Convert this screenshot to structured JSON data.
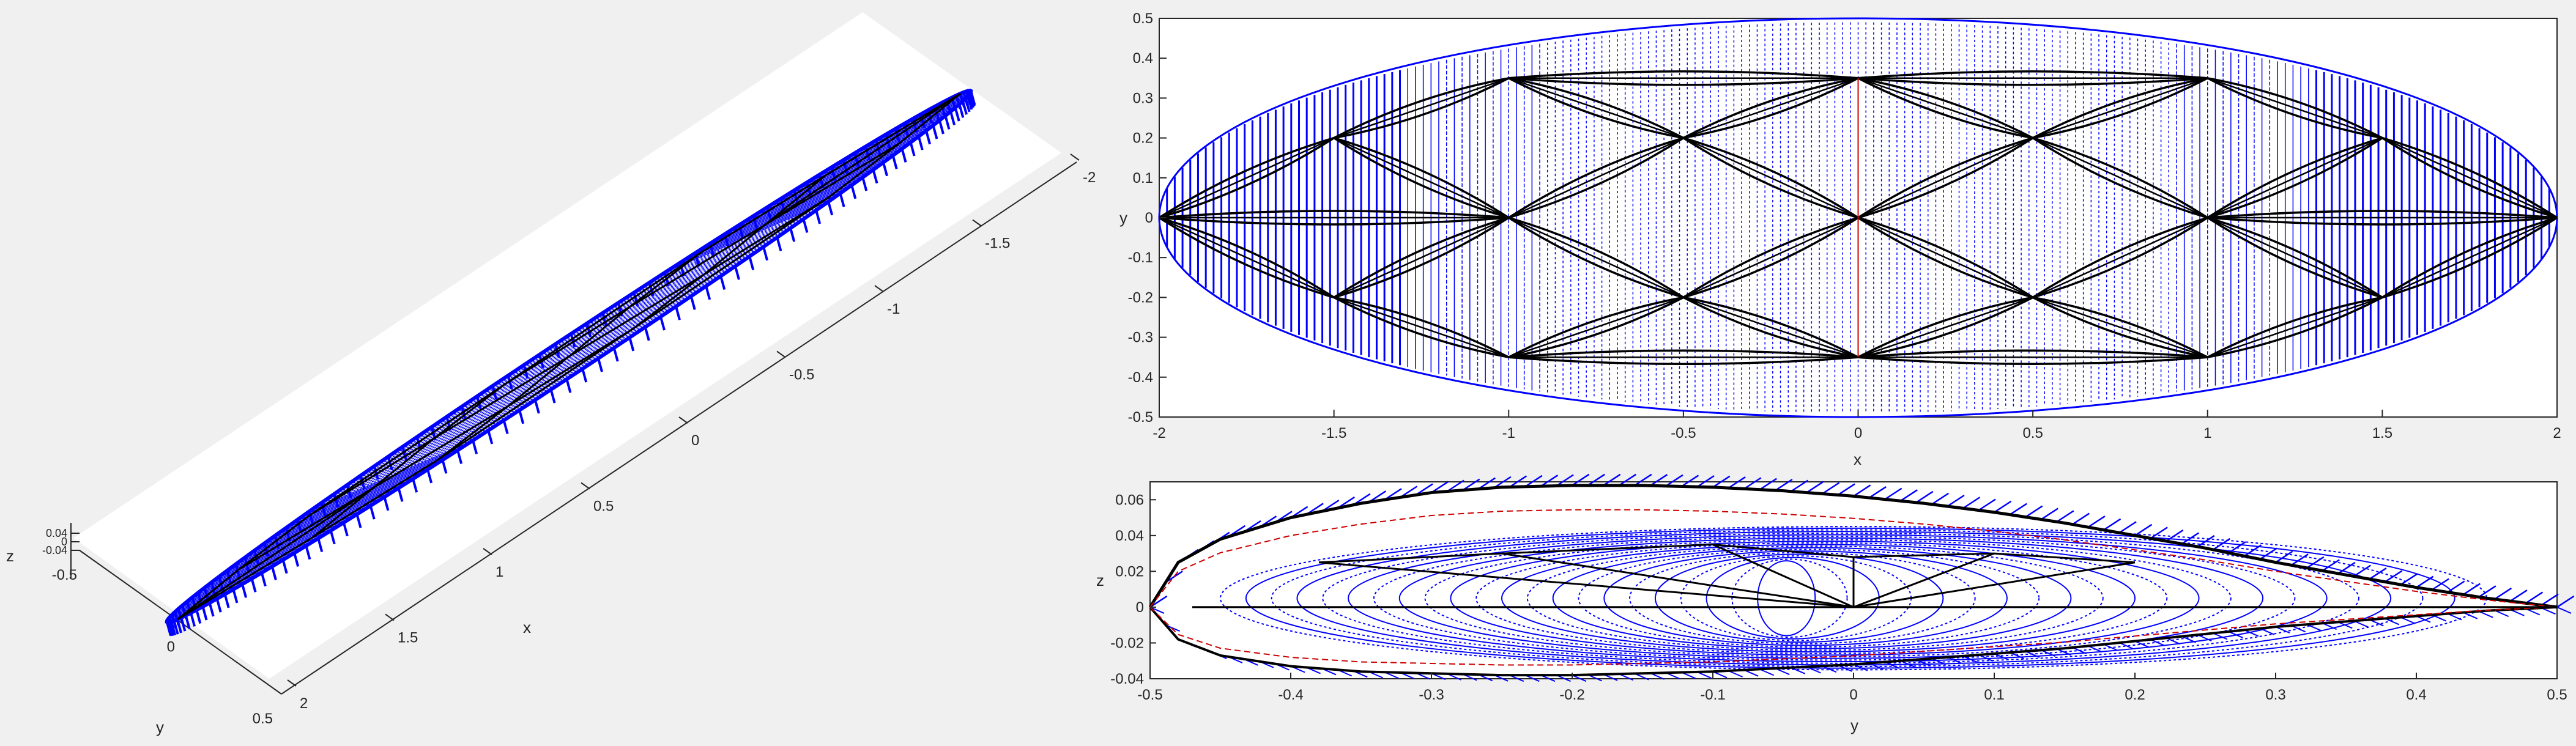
{
  "figure": {
    "background": "#f0f0f0",
    "axes_background": "#ffffff",
    "axis_color": "#262626",
    "colors": {
      "surface": "#0000ff",
      "truss": "#000000",
      "dashed": "#cc0000"
    }
  },
  "chart_data": [
    {
      "id": "view-3d",
      "type": "scatter",
      "view": "3d-oblique",
      "title": "",
      "xlabel": "x",
      "ylabel": "y",
      "zlabel": "z",
      "x_ticks": [
        "2",
        "1.5",
        "1",
        "0.5",
        "0",
        "-0.5",
        "-1",
        "-1.5",
        "-2"
      ],
      "y_ticks": [
        "0.5",
        "0",
        "-0.5"
      ],
      "z_ticks": [
        "0.04",
        "0",
        "-0.04"
      ],
      "xlim": [
        -2,
        2
      ],
      "ylim": [
        -0.5,
        0.5
      ],
      "zlim": [
        -0.04,
        0.04
      ]
    },
    {
      "id": "view-top",
      "type": "scatter",
      "view": "top (x-y)",
      "title": "",
      "xlabel": "x",
      "ylabel": "y",
      "xlim": [
        -2,
        2
      ],
      "ylim": [
        -0.5,
        0.5
      ],
      "x_ticks": [
        "-2",
        "-1.5",
        "-1",
        "-0.5",
        "0",
        "0.5",
        "1",
        "1.5",
        "2"
      ],
      "y_ticks": [
        "0.5",
        "0.4",
        "0.3",
        "0.2",
        "0.1",
        "0",
        "-0.1",
        "-0.2",
        "-0.3",
        "-0.4",
        "-0.5"
      ],
      "outline": {
        "shape": "ellipse",
        "semi_axis_x": 2,
        "semi_axis_y": 0.5
      },
      "truss_nodes": [
        {
          "x": -2,
          "y": 0
        },
        {
          "x": 2,
          "y": 0
        },
        {
          "x": -1,
          "y": 0
        },
        {
          "x": 0,
          "y": 0
        },
        {
          "x": 1,
          "y": 0
        },
        {
          "x": 0,
          "y": 0.35
        },
        {
          "x": 0,
          "y": -0.35
        },
        {
          "x": -1,
          "y": 0.35
        },
        {
          "x": 1,
          "y": 0.35
        },
        {
          "x": -1,
          "y": -0.35
        },
        {
          "x": 1,
          "y": -0.35
        },
        {
          "x": -1.5,
          "y": 0.2
        },
        {
          "x": 1.5,
          "y": 0.2
        },
        {
          "x": -1.5,
          "y": -0.2
        },
        {
          "x": 1.5,
          "y": -0.2
        },
        {
          "x": -0.5,
          "y": 0.2
        },
        {
          "x": 0.5,
          "y": 0.2
        },
        {
          "x": -0.5,
          "y": -0.2
        },
        {
          "x": 0.5,
          "y": -0.2
        }
      ]
    },
    {
      "id": "view-side",
      "type": "line",
      "view": "side (y-z)",
      "title": "",
      "xlabel": "y",
      "ylabel": "z",
      "xlim": [
        -0.5,
        0.5
      ],
      "ylim": [
        -0.04,
        0.07
      ],
      "x_ticks": [
        "-0.5",
        "-0.4",
        "-0.3",
        "-0.2",
        "-0.1",
        "0",
        "0.1",
        "0.2",
        "0.3",
        "0.4",
        "0.5"
      ],
      "y_ticks": [
        "0.06",
        "0.04",
        "0.02",
        "0",
        "-0.02",
        "-0.04"
      ],
      "profile": {
        "y": [
          -0.5,
          -0.48,
          -0.45,
          -0.4,
          -0.35,
          -0.3,
          -0.25,
          -0.2,
          -0.15,
          -0.1,
          -0.05,
          0,
          0.05,
          0.1,
          0.15,
          0.2,
          0.25,
          0.3,
          0.35,
          0.4,
          0.45,
          0.5
        ],
        "upper": [
          0,
          0.025,
          0.038,
          0.05,
          0.058,
          0.064,
          0.067,
          0.068,
          0.068,
          0.067,
          0.065,
          0.062,
          0.058,
          0.053,
          0.047,
          0.04,
          0.033,
          0.025,
          0.018,
          0.011,
          0.005,
          0
        ],
        "lower": [
          0,
          -0.018,
          -0.027,
          -0.033,
          -0.036,
          -0.037,
          -0.038,
          -0.038,
          -0.037,
          -0.036,
          -0.034,
          -0.032,
          -0.029,
          -0.026,
          -0.023,
          -0.019,
          -0.015,
          -0.011,
          -0.008,
          -0.005,
          -0.002,
          0
        ]
      },
      "truss_nodes": [
        {
          "y": -0.47,
          "z": 0.0
        },
        {
          "y": 0.0,
          "z": 0.0
        },
        {
          "y": 0.5,
          "z": 0.0
        },
        {
          "y": -0.38,
          "z": 0.025
        },
        {
          "y": -0.25,
          "z": 0.03
        },
        {
          "y": -0.1,
          "z": 0.035
        },
        {
          "y": 0.0,
          "z": 0.028
        },
        {
          "y": 0.1,
          "z": 0.03
        },
        {
          "y": 0.2,
          "z": 0.025
        }
      ]
    }
  ]
}
